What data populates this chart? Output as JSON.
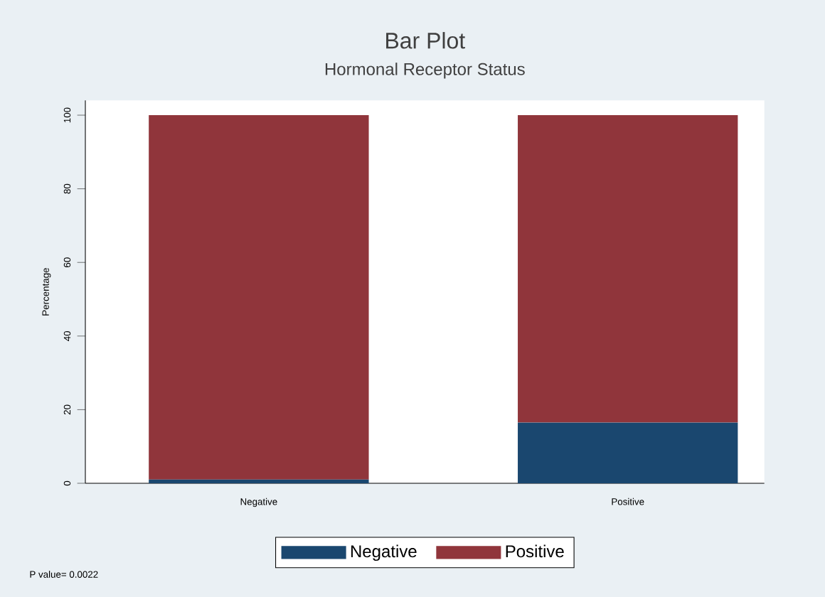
{
  "chart_data": {
    "type": "bar",
    "title": "Bar Plot",
    "subtitle": "Hormonal Receptor Status",
    "ylabel": "Percentage",
    "categories": [
      "Negative",
      "Positive"
    ],
    "stacked": true,
    "legend": "bottom",
    "series": [
      {
        "name": "Negative",
        "color": "#1a476f",
        "values": [
          1,
          16.5
        ]
      },
      {
        "name": "Positive",
        "color": "#90353b",
        "values": [
          99,
          83.5
        ]
      }
    ],
    "ylim": [
      0,
      104
    ],
    "yticks": [
      0,
      20,
      40,
      60,
      80,
      100
    ],
    "annotations": [
      "P value=  0.0022"
    ]
  }
}
